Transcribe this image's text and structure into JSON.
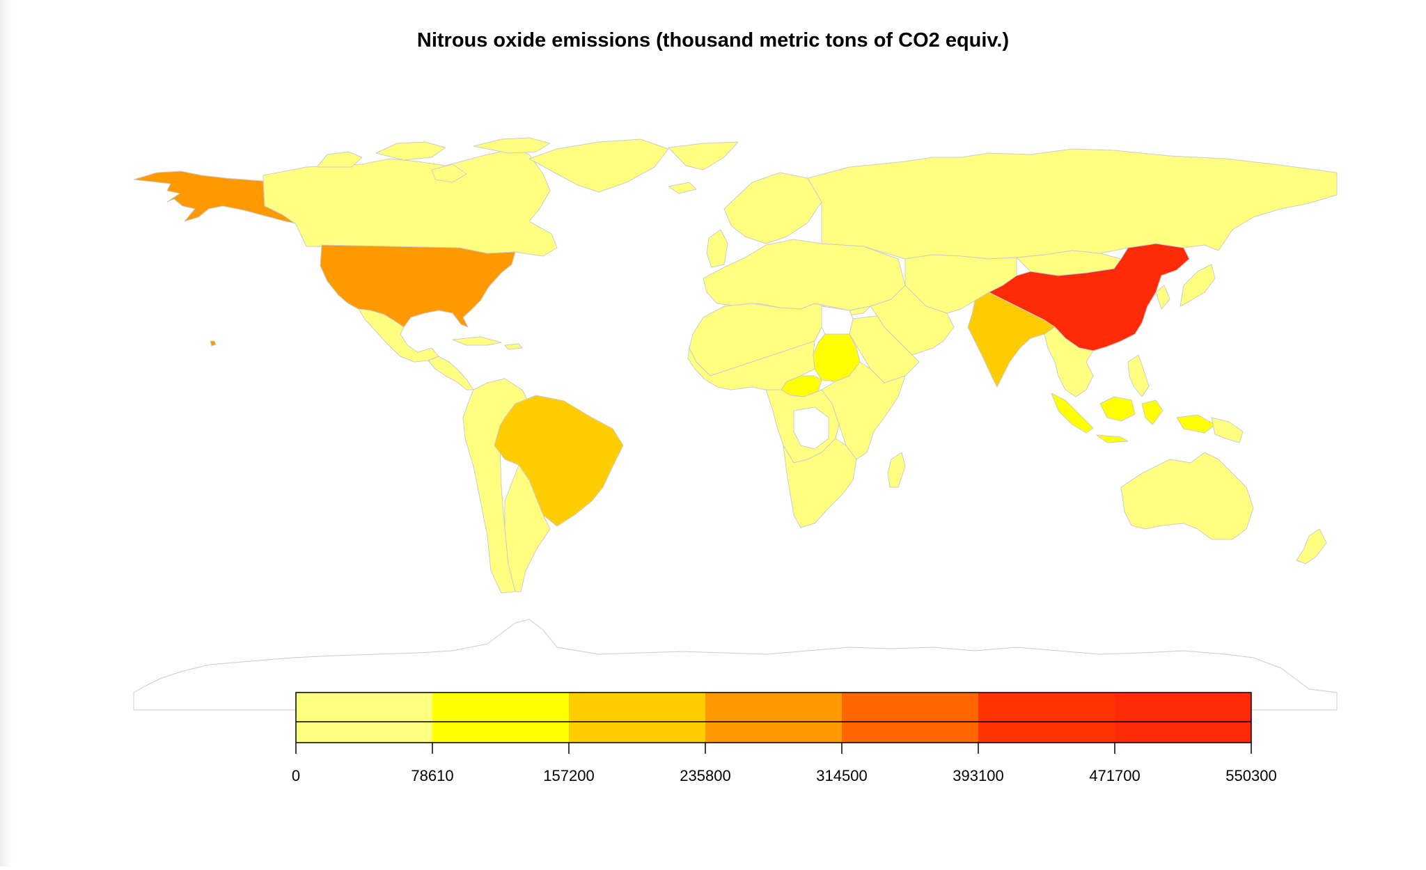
{
  "title": "Nitrous oxide emissions (thousand metric tons  of CO2 equiv.)",
  "legend": {
    "breaks": [
      "0",
      "78610",
      "157200",
      "235800",
      "314500",
      "393100",
      "471700",
      "550300"
    ],
    "colors": [
      "#FFFF80",
      "#FFFF00",
      "#FFCC00",
      "#FF9900",
      "#FF6600",
      "#FF3300",
      "#FF2A08"
    ]
  },
  "map_colors": {
    "ocean": "#ffffff",
    "border": "#cccccc",
    "no_data": "#ffffff",
    "lowest": "#FFFF80"
  },
  "highlighted_regions": [
    {
      "name": "China",
      "color": "#FF2A08"
    },
    {
      "name": "United States",
      "color": "#FF9900"
    },
    {
      "name": "Alaska",
      "color": "#FF9900"
    },
    {
      "name": "India",
      "color": "#FFCC00"
    },
    {
      "name": "Brazil",
      "color": "#FFCC00"
    },
    {
      "name": "Indonesia",
      "color": "#FFFF00"
    },
    {
      "name": "Sudan",
      "color": "#FFFF00"
    },
    {
      "name": "Central African Republic",
      "color": "#FFFF00"
    }
  ]
}
